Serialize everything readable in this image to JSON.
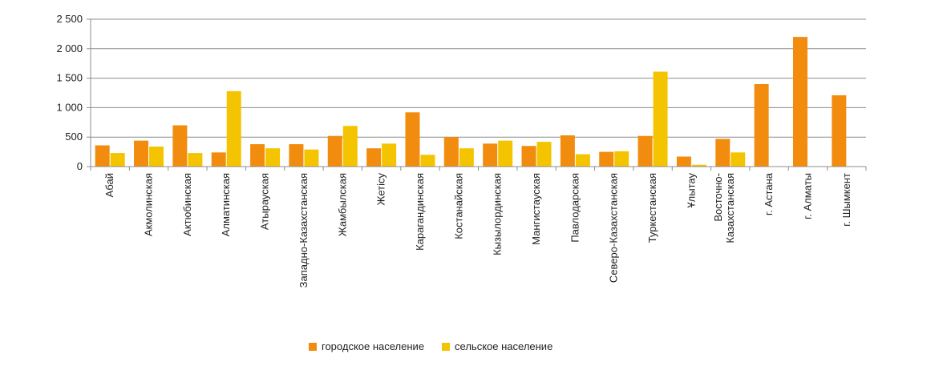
{
  "chart_data": {
    "type": "bar",
    "title": "",
    "xlabel": "",
    "ylabel": "",
    "ylim": [
      0,
      2500
    ],
    "yticks": [
      "0",
      "500",
      "1 000",
      "1 500",
      "2 000",
      "2 500"
    ],
    "ytick_values": [
      0,
      500,
      1000,
      1500,
      2000,
      2500
    ],
    "grid": true,
    "legend_position": "bottom",
    "categories": [
      "Абай",
      "Акмолинская",
      "Актюбинская",
      "Алматинская",
      "Атырауская",
      "Западно-Казахстанская",
      "Жамбылская",
      "Жетісу",
      "Карагандинская",
      "Костанайская",
      "Кызылординская",
      "Мангистауская",
      "Павлодарская",
      "Северо-Казахстанская",
      "Туркестанская",
      "Ұлытау",
      "Восточно-Казахстанская",
      "г. Астана",
      "г. Алматы",
      "г. Шымкент"
    ],
    "category_lines": [
      [
        "Абай"
      ],
      [
        "Акмолинская"
      ],
      [
        "Актюбинская"
      ],
      [
        "Алматинская"
      ],
      [
        "Атырауская"
      ],
      [
        "Западно-Казахстанская"
      ],
      [
        "Жамбылская"
      ],
      [
        "Жетісу"
      ],
      [
        "Карагандинская"
      ],
      [
        "Костанайская"
      ],
      [
        "Кызылординская"
      ],
      [
        "Мангистауская"
      ],
      [
        "Павлодарская"
      ],
      [
        "Северо-Казахстанская"
      ],
      [
        "Туркестанская"
      ],
      [
        "Ұлытау"
      ],
      [
        "Восточно-",
        "Казахстанская"
      ],
      [
        "г. Астана"
      ],
      [
        "г. Алматы"
      ],
      [
        "г. Шымкент"
      ]
    ],
    "series": [
      {
        "name": "городское население",
        "color": "#F28C0F",
        "values": [
          360,
          440,
          700,
          240,
          380,
          380,
          520,
          310,
          920,
          500,
          390,
          350,
          530,
          250,
          520,
          170,
          470,
          1400,
          2200,
          1210
        ]
      },
      {
        "name": "сельское население",
        "color": "#F5C400",
        "values": [
          230,
          340,
          230,
          1280,
          310,
          290,
          690,
          390,
          200,
          310,
          440,
          420,
          210,
          260,
          1610,
          30,
          240,
          0,
          0,
          0
        ]
      }
    ]
  }
}
